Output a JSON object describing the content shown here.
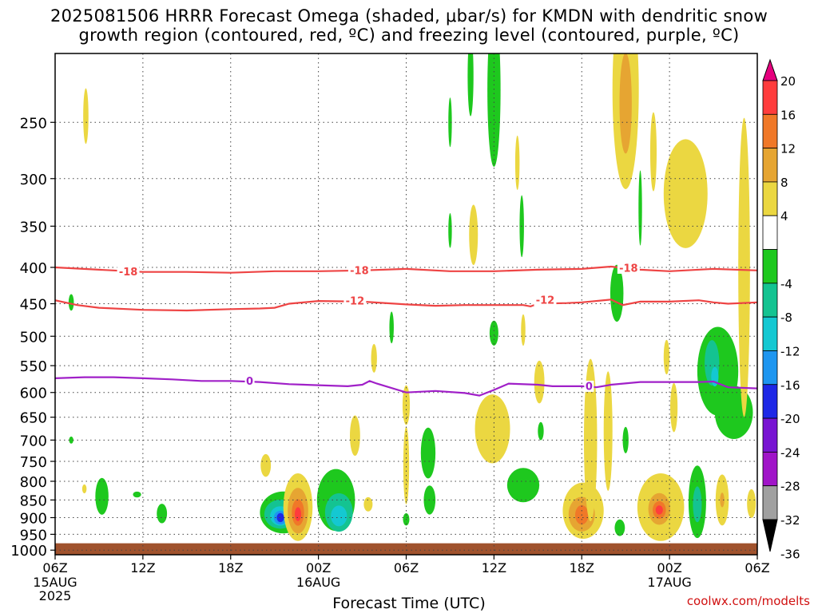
{
  "header": {
    "title_line1": "2025081506 HRRR Forecast Omega (shaded, μbar/s) for KMDN with dendritic snow",
    "title_line2": "growth region (contoured, red, ºC) and freezing level (contoured, purple, ºC)"
  },
  "footer": {
    "credit": "coolwx.com/modelts"
  },
  "chart_data": {
    "type": "heatmap",
    "title": "2025081506 HRRR Forecast Omega (shaded, μbar/s) for KMDN with dendritic snow growth region (contoured, red, ºC) and freezing level (contoured, purple, ºC)",
    "xlabel": "Forecast Time (UTC)",
    "ylabel": "",
    "x_range_hours": [
      0,
      48
    ],
    "x_ticks": [
      {
        "hour": 0,
        "label": "06Z",
        "sub": [
          "15AUG",
          "2025"
        ]
      },
      {
        "hour": 6,
        "label": "12Z",
        "sub": []
      },
      {
        "hour": 12,
        "label": "18Z",
        "sub": []
      },
      {
        "hour": 18,
        "label": "00Z",
        "sub": [
          "16AUG"
        ]
      },
      {
        "hour": 24,
        "label": "06Z",
        "sub": []
      },
      {
        "hour": 30,
        "label": "12Z",
        "sub": []
      },
      {
        "hour": 36,
        "label": "18Z",
        "sub": []
      },
      {
        "hour": 42,
        "label": "00Z",
        "sub": [
          "17AUG"
        ]
      },
      {
        "hour": 48,
        "label": "06Z",
        "sub": []
      }
    ],
    "y_ticks": [
      250,
      300,
      350,
      400,
      450,
      500,
      550,
      600,
      650,
      700,
      750,
      800,
      850,
      900,
      950,
      1000
    ],
    "y_range_hpa": [
      200,
      1015
    ],
    "y_scale": "log",
    "grid": true,
    "colorbar": {
      "labels": [
        "20",
        "16",
        "12",
        "8",
        "4",
        "-4",
        "-8",
        "-12",
        "-16",
        "-20",
        "-24",
        "-28",
        "-32",
        "-36"
      ],
      "bins": [
        {
          "lo": 20,
          "hi": 99,
          "color": "#e6007e"
        },
        {
          "lo": 16,
          "hi": 20,
          "color": "#ff3c3c"
        },
        {
          "lo": 12,
          "hi": 16,
          "color": "#f07828"
        },
        {
          "lo": 8,
          "hi": 12,
          "color": "#e6a532"
        },
        {
          "lo": 4,
          "hi": 8,
          "color": "#ebd741"
        },
        {
          "lo": -4,
          "hi": 4,
          "color": "#ffffff"
        },
        {
          "lo": -8,
          "hi": -4,
          "color": "#1ec81e"
        },
        {
          "lo": -12,
          "hi": -8,
          "color": "#14c391"
        },
        {
          "lo": -16,
          "hi": -12,
          "color": "#14c8d2"
        },
        {
          "lo": -20,
          "hi": -16,
          "color": "#1e96f0"
        },
        {
          "lo": -24,
          "hi": -20,
          "color": "#1e28e6"
        },
        {
          "lo": -28,
          "hi": -24,
          "color": "#7814d2"
        },
        {
          "lo": -32,
          "hi": -28,
          "color": "#a014c8"
        },
        {
          "lo": -36,
          "hi": -32,
          "color": "#a0a0a0"
        },
        {
          "lo": -99,
          "hi": -36,
          "color": "#000000"
        }
      ]
    },
    "surface_hpa": 978,
    "surface_color": "#a0522d",
    "contours": [
      {
        "name": "-18",
        "color": "#ee4444",
        "points": [
          [
            0,
            400
          ],
          [
            3,
            403
          ],
          [
            6,
            406
          ],
          [
            9,
            406
          ],
          [
            12,
            407
          ],
          [
            15,
            405
          ],
          [
            18,
            405
          ],
          [
            21,
            404
          ],
          [
            24,
            402
          ],
          [
            27,
            405
          ],
          [
            30,
            405
          ],
          [
            33,
            403
          ],
          [
            36,
            402
          ],
          [
            38,
            399
          ],
          [
            40,
            403
          ],
          [
            42,
            405
          ],
          [
            45,
            402
          ],
          [
            48,
            404
          ]
        ],
        "labels": [
          [
            5,
            406
          ],
          [
            20.8,
            404
          ],
          [
            39.2,
            401
          ]
        ]
      },
      {
        "name": "-12",
        "color": "#ee4444",
        "points": [
          [
            0,
            445
          ],
          [
            1.5,
            452
          ],
          [
            3,
            456
          ],
          [
            6,
            459
          ],
          [
            9,
            460
          ],
          [
            12,
            458
          ],
          [
            14,
            457
          ],
          [
            15,
            456
          ],
          [
            16,
            450
          ],
          [
            18,
            446
          ],
          [
            21,
            447
          ],
          [
            24,
            451
          ],
          [
            26,
            453
          ],
          [
            28,
            452
          ],
          [
            30,
            452
          ],
          [
            32,
            452
          ],
          [
            32.5,
            454
          ],
          [
            33,
            450
          ],
          [
            35,
            449
          ],
          [
            36,
            448
          ],
          [
            38,
            444
          ],
          [
            38.8,
            452
          ],
          [
            40,
            447
          ],
          [
            42,
            447
          ],
          [
            44,
            445
          ],
          [
            45,
            448
          ],
          [
            46,
            450
          ],
          [
            48,
            448
          ]
        ],
        "labels": [
          [
            20.5,
            446
          ],
          [
            33.5,
            445
          ]
        ]
      },
      {
        "name": "0",
        "color": "#a020c8",
        "points": [
          [
            0,
            573
          ],
          [
            2,
            571
          ],
          [
            4,
            571
          ],
          [
            6,
            573
          ],
          [
            8,
            575
          ],
          [
            10,
            578
          ],
          [
            12,
            578
          ],
          [
            14,
            580
          ],
          [
            16,
            584
          ],
          [
            18,
            586
          ],
          [
            20,
            588
          ],
          [
            21,
            585
          ],
          [
            21.5,
            578
          ],
          [
            22,
            583
          ],
          [
            24,
            600
          ],
          [
            26,
            597
          ],
          [
            28,
            601
          ],
          [
            29,
            606
          ],
          [
            30,
            595
          ],
          [
            31,
            583
          ],
          [
            33,
            585
          ],
          [
            34,
            588
          ],
          [
            36,
            588
          ],
          [
            37,
            590
          ],
          [
            38,
            585
          ],
          [
            40,
            580
          ],
          [
            42,
            580
          ],
          [
            44,
            580
          ],
          [
            45,
            579
          ],
          [
            46,
            590
          ],
          [
            48,
            592
          ]
        ],
        "labels": [
          [
            13.3,
            578
          ],
          [
            36.5,
            588
          ]
        ]
      }
    ],
    "features": [
      {
        "t": 2.1,
        "p": 245,
        "rt": 0.18,
        "rp": 22,
        "v": 5
      },
      {
        "t": 1.1,
        "p": 448,
        "rt": 0.18,
        "rp": 12,
        "v": -6
      },
      {
        "t": 1.1,
        "p": 700,
        "rt": 0.15,
        "rp": 8,
        "v": -6
      },
      {
        "t": 3.2,
        "p": 840,
        "rt": 0.45,
        "rp": 50,
        "v": -6
      },
      {
        "t": 2.0,
        "p": 820,
        "rt": 0.15,
        "rp": 12,
        "v": 5
      },
      {
        "t": 5.6,
        "p": 835,
        "rt": 0.28,
        "rp": 8,
        "v": -6
      },
      {
        "t": 7.3,
        "p": 888,
        "rt": 0.35,
        "rp": 28,
        "v": -6
      },
      {
        "t": 14.4,
        "p": 760,
        "rt": 0.35,
        "rp": 28,
        "v": 5
      },
      {
        "t": 15.6,
        "p": 885,
        "rt": 1.6,
        "rp": 60,
        "v": -7
      },
      {
        "t": 15.4,
        "p": 890,
        "rt": 1.1,
        "rp": 42,
        "v": -11
      },
      {
        "t": 15.4,
        "p": 895,
        "rt": 0.7,
        "rp": 28,
        "v": -15
      },
      {
        "t": 15.4,
        "p": 900,
        "rt": 0.45,
        "rp": 20,
        "v": -19
      },
      {
        "t": 15.4,
        "p": 900,
        "rt": 0.25,
        "rp": 13,
        "v": -22
      },
      {
        "t": 16.6,
        "p": 870,
        "rt": 1.0,
        "rp": 95,
        "v": 6
      },
      {
        "t": 16.6,
        "p": 880,
        "rt": 0.7,
        "rp": 65,
        "v": 9
      },
      {
        "t": 16.6,
        "p": 885,
        "rt": 0.42,
        "rp": 38,
        "v": 13
      },
      {
        "t": 16.6,
        "p": 890,
        "rt": 0.22,
        "rp": 20,
        "v": 17
      },
      {
        "t": 19.2,
        "p": 850,
        "rt": 1.3,
        "rp": 85,
        "v": -6
      },
      {
        "t": 19.4,
        "p": 885,
        "rt": 0.95,
        "rp": 55,
        "v": -10
      },
      {
        "t": 19.4,
        "p": 895,
        "rt": 0.55,
        "rp": 30,
        "v": -13
      },
      {
        "t": 19.4,
        "p": 900,
        "rt": 0.25,
        "rp": 14,
        "v": -15
      },
      {
        "t": 20.5,
        "p": 690,
        "rt": 0.35,
        "rp": 45,
        "v": 5
      },
      {
        "t": 21.4,
        "p": 862,
        "rt": 0.3,
        "rp": 20,
        "v": 5
      },
      {
        "t": 21.8,
        "p": 537,
        "rt": 0.2,
        "rp": 25,
        "v": 5
      },
      {
        "t": 23.0,
        "p": 486,
        "rt": 0.15,
        "rp": 25,
        "v": -6
      },
      {
        "t": 24.0,
        "p": 905,
        "rt": 0.22,
        "rp": 18,
        "v": -6
      },
      {
        "t": 24.0,
        "p": 625,
        "rt": 0.25,
        "rp": 40,
        "v": 5
      },
      {
        "t": 24.0,
        "p": 760,
        "rt": 0.2,
        "rp": 95,
        "v": 5
      },
      {
        "t": 25.5,
        "p": 730,
        "rt": 0.5,
        "rp": 60,
        "v": -6
      },
      {
        "t": 25.6,
        "p": 850,
        "rt": 0.4,
        "rp": 40,
        "v": -6
      },
      {
        "t": 27.0,
        "p": 250,
        "rt": 0.12,
        "rp": 20,
        "v": -6
      },
      {
        "t": 27.0,
        "p": 355,
        "rt": 0.12,
        "rp": 20,
        "v": -6
      },
      {
        "t": 28.6,
        "p": 360,
        "rt": 0.3,
        "rp": 35,
        "v": 5
      },
      {
        "t": 28.4,
        "p": 215,
        "rt": 0.2,
        "rp": 28,
        "v": -6
      },
      {
        "t": 30.0,
        "p": 225,
        "rt": 0.45,
        "rp": 55,
        "v": -6
      },
      {
        "t": 30.0,
        "p": 495,
        "rt": 0.3,
        "rp": 20,
        "v": -6
      },
      {
        "t": 29.9,
        "p": 675,
        "rt": 1.2,
        "rp": 75,
        "v": 5
      },
      {
        "t": 31.6,
        "p": 285,
        "rt": 0.15,
        "rp": 25,
        "v": 5
      },
      {
        "t": 31.9,
        "p": 350,
        "rt": 0.15,
        "rp": 35,
        "v": -6
      },
      {
        "t": 32.0,
        "p": 490,
        "rt": 0.15,
        "rp": 25,
        "v": 5
      },
      {
        "t": 33.1,
        "p": 580,
        "rt": 0.35,
        "rp": 40,
        "v": 5
      },
      {
        "t": 32.0,
        "p": 810,
        "rt": 1.1,
        "rp": 45,
        "v": -6
      },
      {
        "t": 33.2,
        "p": 680,
        "rt": 0.2,
        "rp": 20,
        "v": -6
      },
      {
        "t": 36.1,
        "p": 880,
        "rt": 1.4,
        "rp": 80,
        "v": 6
      },
      {
        "t": 36.0,
        "p": 890,
        "rt": 0.9,
        "rp": 50,
        "v": 9
      },
      {
        "t": 36.0,
        "p": 892,
        "rt": 0.45,
        "rp": 28,
        "v": 13
      },
      {
        "t": 36.6,
        "p": 700,
        "rt": 0.45,
        "rp": 180,
        "v": 5
      },
      {
        "t": 37.8,
        "p": 680,
        "rt": 0.3,
        "rp": 130,
        "v": 6
      },
      {
        "t": 38.6,
        "p": 930,
        "rt": 0.35,
        "rp": 25,
        "v": -6
      },
      {
        "t": 39.0,
        "p": 700,
        "rt": 0.2,
        "rp": 30,
        "v": -6
      },
      {
        "t": 38.4,
        "p": 435,
        "rt": 0.45,
        "rp": 40,
        "v": -6
      },
      {
        "t": 39.0,
        "p": 225,
        "rt": 0.9,
        "rp": 70,
        "v": 5
      },
      {
        "t": 39.0,
        "p": 235,
        "rt": 0.42,
        "rp": 38,
        "v": 9
      },
      {
        "t": 40.0,
        "p": 330,
        "rt": 0.12,
        "rp": 40,
        "v": -6
      },
      {
        "t": 40.9,
        "p": 275,
        "rt": 0.22,
        "rp": 35,
        "v": 5
      },
      {
        "t": 41.8,
        "p": 535,
        "rt": 0.2,
        "rp": 30,
        "v": 5
      },
      {
        "t": 41.4,
        "p": 870,
        "rt": 1.6,
        "rp": 95,
        "v": 5
      },
      {
        "t": 41.3,
        "p": 870,
        "rt": 1.1,
        "rp": 70,
        "v": 7
      },
      {
        "t": 41.3,
        "p": 875,
        "rt": 0.75,
        "rp": 45,
        "v": 11
      },
      {
        "t": 41.3,
        "p": 878,
        "rt": 0.45,
        "rp": 25,
        "v": 14
      },
      {
        "t": 41.3,
        "p": 878,
        "rt": 0.25,
        "rp": 13,
        "v": 17
      },
      {
        "t": 43.9,
        "p": 855,
        "rt": 0.6,
        "rp": 100,
        "v": -6
      },
      {
        "t": 43.9,
        "p": 862,
        "rt": 0.3,
        "rp": 50,
        "v": -10
      },
      {
        "t": 45.6,
        "p": 850,
        "rt": 0.45,
        "rp": 70,
        "v": 5
      },
      {
        "t": 45.6,
        "p": 850,
        "rt": 0.15,
        "rp": 20,
        "v": 9
      },
      {
        "t": 42.3,
        "p": 630,
        "rt": 0.25,
        "rp": 50,
        "v": 5
      },
      {
        "t": 43.1,
        "p": 315,
        "rt": 1.5,
        "rp": 55,
        "v": 5
      },
      {
        "t": 45.3,
        "p": 560,
        "rt": 1.4,
        "rp": 80,
        "v": -6
      },
      {
        "t": 46.4,
        "p": 640,
        "rt": 1.3,
        "rp": 55,
        "v": -6
      },
      {
        "t": 44.9,
        "p": 545,
        "rt": 0.5,
        "rp": 40,
        "v": -10
      },
      {
        "t": 45.1,
        "p": 570,
        "rt": 0.25,
        "rp": 18,
        "v": -13
      },
      {
        "t": 47.1,
        "p": 400,
        "rt": 0.4,
        "rp": 180,
        "v": 5
      },
      {
        "t": 47.6,
        "p": 860,
        "rt": 0.3,
        "rp": 40,
        "v": 5
      }
    ]
  }
}
